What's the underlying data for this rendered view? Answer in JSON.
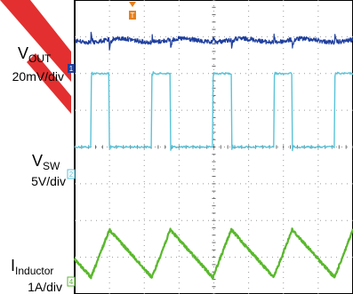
{
  "chart_data": {
    "type": "line",
    "title": "",
    "xlabel": "",
    "ylabel": "",
    "grid": true,
    "grid_divisions": {
      "x": 8,
      "y": 8
    },
    "trigger_marker": {
      "label": "T",
      "color": "#e8801a"
    },
    "channels": [
      {
        "name": "VOUT",
        "name_main": "V",
        "name_sub": "OUT",
        "scale_text": "20mV/div",
        "marker": "1",
        "color": "#1f3f9e",
        "baseline_div": 1.1,
        "description": "ripple with spikes at switching edges"
      },
      {
        "name": "VSW",
        "name_main": "V",
        "name_sub": "SW",
        "scale_text": "5V/div",
        "marker": "2",
        "color": "#5bc3d8",
        "baseline_div": 4.0,
        "high_div": 2.0,
        "description": "square switching waveform"
      },
      {
        "name": "IInductor",
        "name_main": "I",
        "name_sub": "Inductor",
        "scale_text": "1A/div",
        "marker": "4",
        "color": "#59b82c",
        "baseline_div": 7.6,
        "peak_div": 6.25,
        "valley_div": 7.55,
        "description": "triangular inductor current"
      }
    ],
    "switch_events": [
      {
        "rise": 0.47,
        "fall": 1.0
      },
      {
        "rise": 2.22,
        "fall": 2.75
      },
      {
        "rise": 3.97,
        "fall": 4.5
      },
      {
        "rise": 5.72,
        "fall": 6.25
      },
      {
        "rise": 7.47,
        "fall": 8.0
      }
    ]
  },
  "labels": {
    "vout_main": "V",
    "vout_sub": "OUT",
    "vout_scale": "20mV/div",
    "vsw_main": "V",
    "vsw_sub": "SW",
    "vsw_scale": "5V/div",
    "il_main": "I",
    "il_sub": "Inductor",
    "il_scale": "1A/div",
    "trigger": "T"
  }
}
